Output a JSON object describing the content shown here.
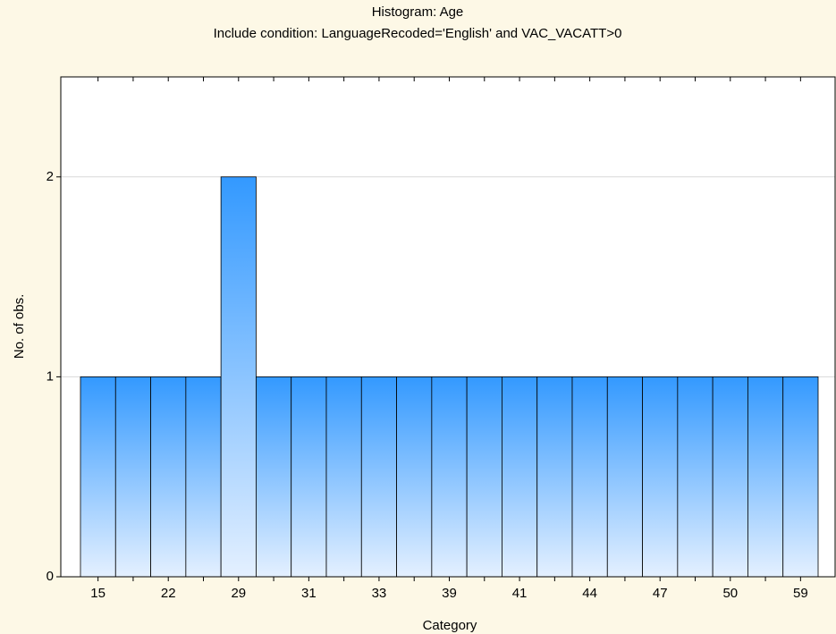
{
  "chart_data": {
    "type": "bar",
    "title": "Histogram: Age",
    "subtitle": "Include condition: LanguageRecoded='English' and VAC_VACATT>0",
    "x_label": "Category",
    "y_label": "No. of obs.",
    "categories": [
      "15",
      null,
      "22",
      null,
      "29",
      null,
      "31",
      null,
      "33",
      null,
      "39",
      null,
      "41",
      null,
      "44",
      null,
      "47",
      null,
      "50",
      null,
      "59"
    ],
    "values": [
      1,
      1,
      1,
      1,
      2,
      1,
      1,
      1,
      1,
      1,
      1,
      1,
      1,
      1,
      1,
      1,
      1,
      1,
      1,
      1,
      1
    ],
    "color": "#3399ff",
    "ylim": [
      0,
      2.5
    ],
    "yticks": [
      0,
      1,
      2
    ],
    "grid": true
  }
}
